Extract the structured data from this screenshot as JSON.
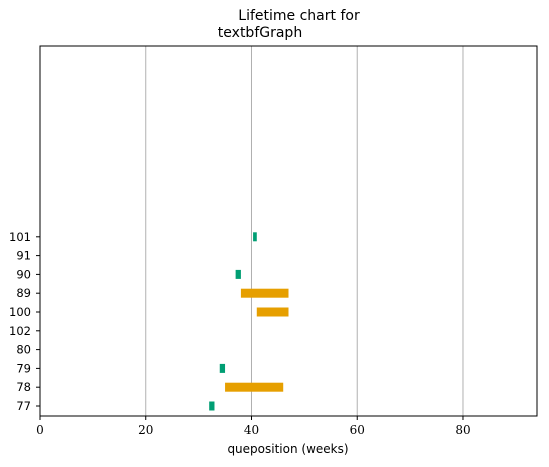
{
  "chart_data": {
    "type": "bar",
    "orientation": "horizontal-gantt",
    "title_lines": [
      "Lifetime chart for",
      "textbfGraph"
    ],
    "xlabel": "queposition (weeks)",
    "ylabel": "",
    "xlim": [
      0,
      94
    ],
    "xticks": [
      0,
      20,
      40,
      60,
      80
    ],
    "grid": "x",
    "categories": [
      "77",
      "78",
      "79",
      "80",
      "102",
      "100",
      "89",
      "90",
      "91",
      "101"
    ],
    "bars": [
      {
        "category": "101",
        "start": 40.3,
        "end": 41.0,
        "color": "#009e73"
      },
      {
        "category": "90",
        "start": 37.0,
        "end": 38.0,
        "color": "#009e73"
      },
      {
        "category": "89",
        "start": 38.0,
        "end": 47.0,
        "color": "#e69f00"
      },
      {
        "category": "100",
        "start": 41.0,
        "end": 47.0,
        "color": "#e69f00"
      },
      {
        "category": "79",
        "start": 34.0,
        "end": 35.0,
        "color": "#009e73"
      },
      {
        "category": "78",
        "start": 35.0,
        "end": 46.0,
        "color": "#e69f00"
      },
      {
        "category": "77",
        "start": 32.0,
        "end": 33.0,
        "color": "#009e73"
      }
    ]
  }
}
